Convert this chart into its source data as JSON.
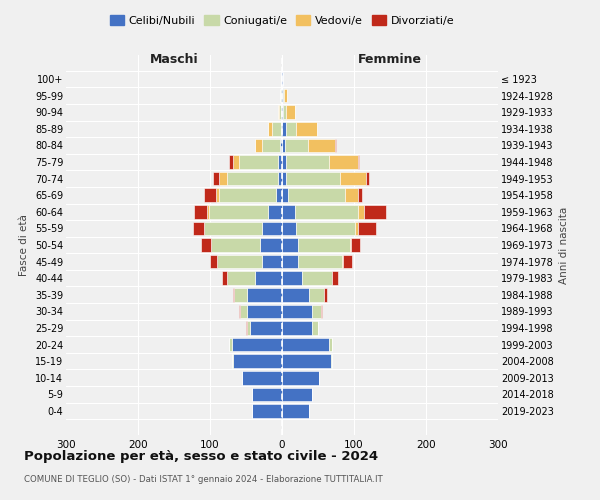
{
  "age_groups": [
    "0-4",
    "5-9",
    "10-14",
    "15-19",
    "20-24",
    "25-29",
    "30-34",
    "35-39",
    "40-44",
    "45-49",
    "50-54",
    "55-59",
    "60-64",
    "65-69",
    "70-74",
    "75-79",
    "80-84",
    "85-89",
    "90-94",
    "95-99",
    "100+"
  ],
  "birth_years": [
    "2019-2023",
    "2014-2018",
    "2009-2013",
    "2004-2008",
    "1999-2003",
    "1994-1998",
    "1989-1993",
    "1984-1988",
    "1979-1983",
    "1974-1978",
    "1969-1973",
    "1964-1968",
    "1959-1963",
    "1954-1958",
    "1949-1953",
    "1944-1948",
    "1939-1943",
    "1934-1938",
    "1929-1933",
    "1924-1928",
    "≤ 1923"
  ],
  "colors": {
    "celibi": "#4472c4",
    "coniugati": "#c8d9a8",
    "vedovi": "#f2c060",
    "divorziati": "#c0291a"
  },
  "maschi": {
    "celibi": [
      42,
      42,
      56,
      68,
      70,
      44,
      48,
      48,
      38,
      28,
      30,
      28,
      20,
      8,
      6,
      5,
      3,
      2,
      1,
      1,
      1
    ],
    "coniugati": [
      0,
      0,
      0,
      2,
      4,
      5,
      10,
      18,
      38,
      62,
      68,
      80,
      82,
      80,
      70,
      55,
      25,
      12,
      3,
      2,
      0
    ],
    "vedovi": [
      0,
      0,
      0,
      0,
      0,
      0,
      0,
      0,
      0,
      0,
      1,
      1,
      2,
      3,
      12,
      8,
      10,
      5,
      1,
      0,
      0
    ],
    "divorziati": [
      0,
      0,
      0,
      0,
      0,
      1,
      2,
      2,
      8,
      10,
      14,
      15,
      18,
      18,
      8,
      5,
      0,
      0,
      0,
      0,
      0
    ]
  },
  "femmine": {
    "celibi": [
      38,
      42,
      52,
      68,
      65,
      42,
      42,
      38,
      28,
      22,
      22,
      20,
      18,
      8,
      6,
      5,
      4,
      5,
      2,
      2,
      1
    ],
    "coniugati": [
      0,
      0,
      0,
      2,
      5,
      8,
      12,
      20,
      42,
      62,
      72,
      82,
      88,
      80,
      75,
      60,
      32,
      15,
      4,
      1,
      0
    ],
    "vedovi": [
      0,
      0,
      0,
      0,
      0,
      0,
      0,
      0,
      0,
      1,
      2,
      4,
      8,
      18,
      35,
      40,
      38,
      28,
      12,
      4,
      1
    ],
    "divorziati": [
      0,
      0,
      0,
      0,
      0,
      0,
      2,
      4,
      8,
      12,
      12,
      25,
      30,
      5,
      5,
      2,
      1,
      0,
      0,
      0,
      0
    ]
  },
  "title": "Popolazione per età, sesso e stato civile - 2024",
  "subtitle": "COMUNE DI TEGLIO (SO) - Dati ISTAT 1° gennaio 2024 - Elaborazione TUTTITALIA.IT",
  "xlabel_maschi": "Maschi",
  "xlabel_femmine": "Femmine",
  "ylabel_left": "Fasce di età",
  "ylabel_right": "Anni di nascita",
  "xlim": 300,
  "background_color": "#f0f0f0",
  "grid_color": "#ffffff"
}
